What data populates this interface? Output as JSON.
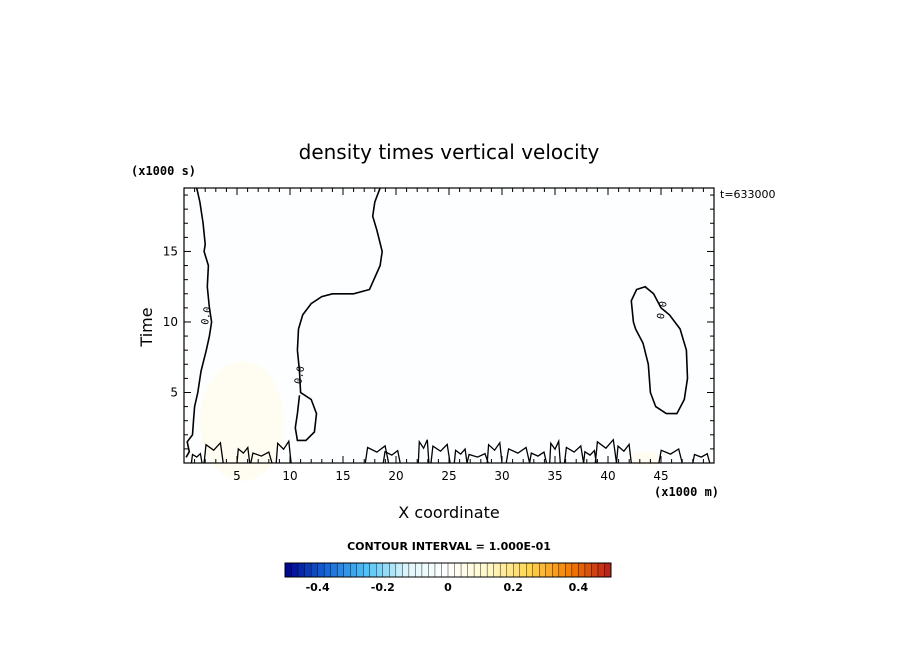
{
  "chart_data": {
    "type": "heatmap",
    "title": "density times vertical velocity",
    "xlabel": "X coordinate",
    "ylabel": "Time",
    "x_unit": "(x1000 m)",
    "y_unit": "(x1000 s)",
    "annotation": "t=633000",
    "xlim": [
      0,
      50
    ],
    "ylim": [
      0,
      19.5
    ],
    "x_ticks": [
      5,
      10,
      15,
      20,
      25,
      30,
      35,
      40,
      45
    ],
    "x_tick_labels": [
      "5",
      "10",
      "15",
      "20",
      "25",
      "30",
      "35",
      "40",
      "45"
    ],
    "y_ticks": [
      5,
      10,
      15
    ],
    "y_tick_labels": [
      "5",
      "10",
      "15"
    ],
    "zero_contour_label": "0.0",
    "contour_interval_text": "CONTOUR INTERVAL = 1.000E-01",
    "colorbar": {
      "range": [
        -0.5,
        0.5
      ],
      "ticks": [
        -0.4,
        -0.2,
        0,
        0.2,
        0.4
      ],
      "tick_labels": [
        "-0.4",
        "-0.2",
        "0",
        "0.2",
        "0.4"
      ],
      "colors": [
        "#00008b",
        "#1565d8",
        "#4fc3f7",
        "#e0f7fa",
        "#ffffff",
        "#fff8c8",
        "#ffd54f",
        "#f57c00",
        "#b71c1c"
      ]
    },
    "background_value": -0.01,
    "positive_regions": [
      {
        "x_range": [
          1.5,
          9.5
        ],
        "y_range": [
          0,
          8.5
        ],
        "peak": 0.03
      },
      {
        "x_range": [
          42,
          45
        ],
        "y_range": [
          0,
          1
        ],
        "peak": 0.03
      }
    ],
    "zero_contours": [
      {
        "name": "left-contour",
        "points": [
          [
            1.2,
            19.5
          ],
          [
            1.5,
            18.5
          ],
          [
            1.8,
            17
          ],
          [
            2,
            15.5
          ],
          [
            1.9,
            15
          ],
          [
            2.3,
            14
          ],
          [
            2.2,
            12.5
          ],
          [
            2.4,
            11
          ],
          [
            2.6,
            10
          ],
          [
            2.4,
            9
          ],
          [
            2.1,
            8
          ],
          [
            1.6,
            6.5
          ],
          [
            1.3,
            5
          ],
          [
            1,
            4
          ],
          [
            0.9,
            3
          ],
          [
            0.8,
            2
          ],
          [
            0.3,
            1.5
          ],
          [
            0.5,
            0.8
          ],
          [
            0.2,
            0.4
          ]
        ]
      },
      {
        "name": "middle-contour",
        "points": [
          [
            18.5,
            19.5
          ],
          [
            18,
            18.5
          ],
          [
            17.8,
            17.5
          ],
          [
            18.2,
            16.5
          ],
          [
            18.7,
            15
          ],
          [
            18.5,
            14
          ],
          [
            17.5,
            12.3
          ],
          [
            16,
            12
          ],
          [
            14,
            12
          ],
          [
            13,
            11.8
          ],
          [
            12,
            11.3
          ],
          [
            11.2,
            10.5
          ],
          [
            10.8,
            9.5
          ],
          [
            10.7,
            8
          ],
          [
            10.9,
            6.5
          ],
          [
            11,
            5
          ],
          [
            12,
            4.5
          ],
          [
            12.5,
            3.5
          ],
          [
            12.3,
            2.2
          ],
          [
            11.5,
            1.6
          ],
          [
            10.7,
            1.6
          ],
          [
            10.5,
            2.5
          ],
          [
            10.7,
            3.5
          ],
          [
            10.9,
            4.8
          ]
        ]
      },
      {
        "name": "right-contour",
        "points": [
          [
            43.5,
            12.5
          ],
          [
            42.7,
            12.3
          ],
          [
            42.2,
            11.5
          ],
          [
            42.4,
            10
          ],
          [
            42.6,
            9.5
          ],
          [
            43.3,
            8.5
          ],
          [
            43.8,
            7
          ],
          [
            44,
            5
          ],
          [
            44.5,
            4
          ],
          [
            45.5,
            3.5
          ],
          [
            46.5,
            3.5
          ],
          [
            47.2,
            4.5
          ],
          [
            47.5,
            6
          ],
          [
            47.4,
            8
          ],
          [
            46.8,
            9.5
          ],
          [
            45.8,
            10.5
          ],
          [
            45,
            11
          ],
          [
            44.3,
            12
          ]
        ]
      }
    ]
  }
}
